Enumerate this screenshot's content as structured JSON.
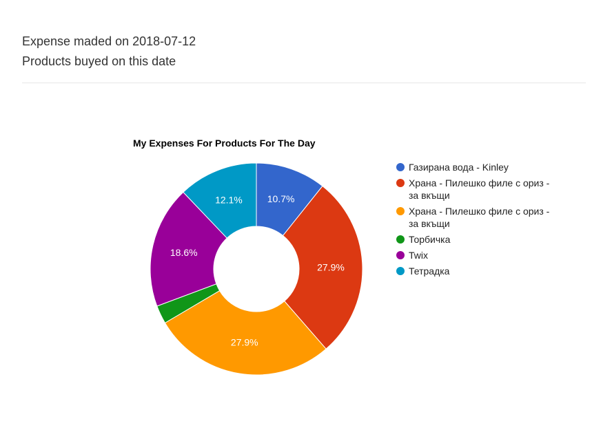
{
  "header": {
    "line1": "Expense maded on 2018-07-12",
    "line2": "Products buyed on this date"
  },
  "chart_data": {
    "type": "pie",
    "donut": true,
    "title": "My Expenses For Products For The Day",
    "legend_position": "right",
    "slices": [
      {
        "label": "Газирана вода - Kinley",
        "percent": 10.7,
        "color": "#3366cc",
        "show_label": true
      },
      {
        "label": "Храна - Пилешко филе с ориз - за вкъщи",
        "percent": 27.9,
        "color": "#dc3912",
        "show_label": true
      },
      {
        "label": "Храна - Пилешко филе с ориз - за вкъщи",
        "percent": 27.9,
        "color": "#ff9900",
        "show_label": true
      },
      {
        "label": "Торбичка",
        "percent": 2.8,
        "color": "#109618",
        "show_label": false
      },
      {
        "label": "Twix",
        "percent": 18.6,
        "color": "#990099",
        "show_label": true
      },
      {
        "label": "Тетрадка",
        "percent": 12.1,
        "color": "#0099c6",
        "show_label": true
      }
    ]
  }
}
